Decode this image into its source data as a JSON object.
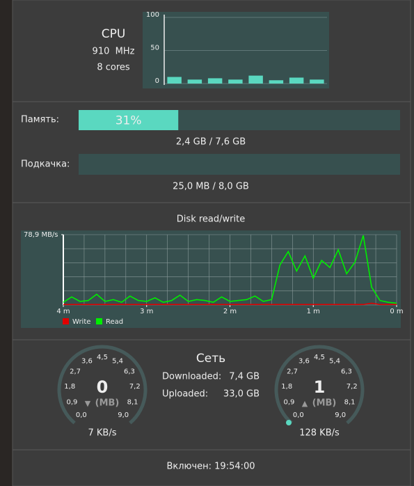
{
  "cpu": {
    "title": "CPU",
    "frequency": "910  MHz",
    "cores": "8 cores",
    "chart": {
      "type": "bar",
      "ylim": [
        0,
        100
      ],
      "yticks": [
        0,
        50,
        100
      ],
      "color": "#5ad8c0",
      "values": [
        10,
        6,
        8,
        6,
        12,
        5,
        9,
        6
      ]
    }
  },
  "memory": {
    "label": "Память:",
    "percent": 31,
    "percent_label": "31%",
    "usage": "2,4 GB / 7,6 GB"
  },
  "swap": {
    "label": "Подкачка:",
    "percent": 0,
    "usage": "25,0 MB / 8,0 GB"
  },
  "disk": {
    "type": "line",
    "title": "Disk read/write",
    "ylim": [
      0,
      78.9
    ],
    "yticks": [
      {
        "value": 78.9,
        "label": "78,9 MB/s"
      }
    ],
    "xlim": [
      -4,
      0
    ],
    "xticks": [
      {
        "value": -4,
        "label": "4 m"
      },
      {
        "value": -3,
        "label": "3 m"
      },
      {
        "value": -2,
        "label": "2 m"
      },
      {
        "value": -1,
        "label": "1 m"
      },
      {
        "value": 0,
        "label": "0 m"
      }
    ],
    "x": [
      -4.0,
      -3.9,
      -3.8,
      -3.7,
      -3.6,
      -3.5,
      -3.4,
      -3.3,
      -3.2,
      -3.1,
      -3.0,
      -2.9,
      -2.8,
      -2.7,
      -2.6,
      -2.5,
      -2.4,
      -2.3,
      -2.2,
      -2.1,
      -2.0,
      -1.9,
      -1.8,
      -1.7,
      -1.6,
      -1.5,
      -1.4,
      -1.3,
      -1.2,
      -1.1,
      -1.0,
      -0.9,
      -0.8,
      -0.7,
      -0.6,
      -0.5,
      -0.4,
      -0.3,
      -0.2,
      -0.1,
      0.0
    ],
    "series": [
      {
        "name": "Write",
        "color": "#e00000",
        "values": [
          0.5,
          0.5,
          0.5,
          0.5,
          0.5,
          0.5,
          0.5,
          0.5,
          0.5,
          0.5,
          0.5,
          0.5,
          0.5,
          0.5,
          0.5,
          0.5,
          0.5,
          0.5,
          0.5,
          0.5,
          0.5,
          0.5,
          0.5,
          0.5,
          0.5,
          0.5,
          0.5,
          0.5,
          0.5,
          0.5,
          0.5,
          0.5,
          0.5,
          0.5,
          0.5,
          0.5,
          0.5,
          2,
          0.5,
          0.5,
          0.5
        ]
      },
      {
        "name": "Read",
        "color": "#00ee00",
        "values": [
          3,
          9,
          4,
          5,
          12,
          4,
          6,
          3,
          10,
          5,
          4,
          8,
          3,
          5,
          11,
          4,
          6,
          5,
          3,
          9,
          4,
          5,
          6,
          10,
          4,
          6,
          45,
          60,
          38,
          55,
          30,
          50,
          42,
          62,
          35,
          48,
          78,
          20,
          5,
          3,
          2
        ]
      }
    ]
  },
  "network": {
    "title": "Сеть",
    "downloaded_label": "Downloaded:",
    "downloaded": "7,4 GB",
    "uploaded_label": "Uploaded:",
    "uploaded": "33,0 GB",
    "download_gauge": {
      "value": 0,
      "arrow": "▼",
      "unit": "(MB)",
      "rate": "7 KB/s",
      "scale": [
        "0,0",
        "0,9",
        "1,8",
        "2,7",
        "3,6",
        "4,5",
        "5,4",
        "6,3",
        "7,2",
        "8,1",
        "9,0"
      ]
    },
    "upload_gauge": {
      "value": 1,
      "arrow": "▲",
      "unit": "(MB)",
      "rate": "128 KB/s",
      "scale": [
        "0,0",
        "0,9",
        "1,8",
        "2,7",
        "3,6",
        "4,5",
        "5,4",
        "6,3",
        "7,2",
        "8,1",
        "9,0"
      ]
    }
  },
  "uptime": "Включен: 19:54:00"
}
